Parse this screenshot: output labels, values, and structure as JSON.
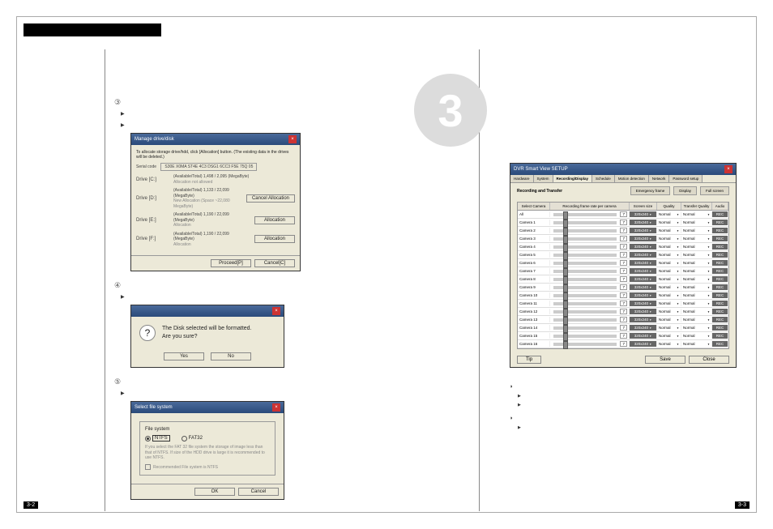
{
  "header_bar": "",
  "big_number": "3",
  "page_left": "3-2",
  "page_right": "3-3",
  "left": {
    "step3": "③",
    "step3_line1": "",
    "step3_line2": "",
    "dlg1": {
      "title": "Manage drive/disk",
      "desc": "To allocate storage drive/hdd, click [Allocation] button. (The existing data in the drives will be deleted.)",
      "serial_label": "Serial code",
      "serial": "S30E X0MA ST4E 4C3 DSG1 6CC3 F5E 75Q 05",
      "rows": [
        {
          "drv": "Drive [C:]",
          "info": "(Available/Total)  1,498 / 2,095 (MegaByte)",
          "sub": "Allocation not allowed",
          "btn": ""
        },
        {
          "drv": "Drive [D:]",
          "info": "(Available/Total)  1,133 / 22,099 (MegaByte)",
          "sub": "New Allocation (Space ~22,080 MegaByte)",
          "btn": "Cancel Allocation"
        },
        {
          "drv": "Drive [E:]",
          "info": "(Available/Total)  1,190 / 22,099 (MegaByte)",
          "sub": "Allocation",
          "btn": "Allocation"
        },
        {
          "drv": "Drive [F:]",
          "info": "(Available/Total)  1,190 / 22,099 (MegaByte)",
          "sub": "Allocation",
          "btn": "Allocation"
        }
      ],
      "proceed": "Proceed[P]",
      "cancel": "Cancel[C]"
    },
    "step4": "④",
    "step4_line": "",
    "dlg2": {
      "msg": "The Disk selected will be formatted.\nAre you sure?",
      "yes": "Yes",
      "no": "No"
    },
    "step5": "⑤",
    "step5_line": "",
    "dlg3": {
      "title": "Select file system",
      "group": "File system",
      "opt1": "NTFS",
      "opt2": "FAT32",
      "note": "If you select the FAT 32 file system the storage of image less than that of NTFS. If size of the HDD drive is large it is recommended to use NTFS.",
      "cb": "Recommended File system is NTFS",
      "ok": "OK",
      "cancel": "Cancel"
    }
  },
  "right": {
    "setup": {
      "title": "DVR Smart View SETUP",
      "tabs": [
        "Hardware",
        "System",
        "Recording/Display",
        "Schedule",
        "Motion detection",
        "Network",
        "Password setup"
      ],
      "active_tab": 2,
      "subtab_label": "Recording and Transfer",
      "subtabs": [
        "Emergency frame",
        "Display",
        "Full screen"
      ],
      "head": [
        "Select Camera",
        "Recording frame rate per camera",
        "Screen size",
        "Quality",
        "Transfer Quality",
        "Audio"
      ],
      "cam_all": "All",
      "cams": [
        "Camera 1",
        "Camera 2",
        "Camera 3",
        "Camera 4",
        "Camera 5",
        "Camera 6",
        "Camera 7",
        "Camera 8",
        "Camera 9",
        "Camera 10",
        "Camera 11",
        "Camera 12",
        "Camera 13",
        "Camera 14",
        "Camera 15",
        "Camera 16"
      ],
      "fps": "7",
      "size": "320x240",
      "quality": "Normal",
      "tquality": "Normal",
      "audio": "REC",
      "tip": "Tip",
      "save": "Save",
      "close": "Close"
    },
    "h1": "",
    "b1": "",
    "b2": "",
    "h2": "",
    "b3": ""
  }
}
